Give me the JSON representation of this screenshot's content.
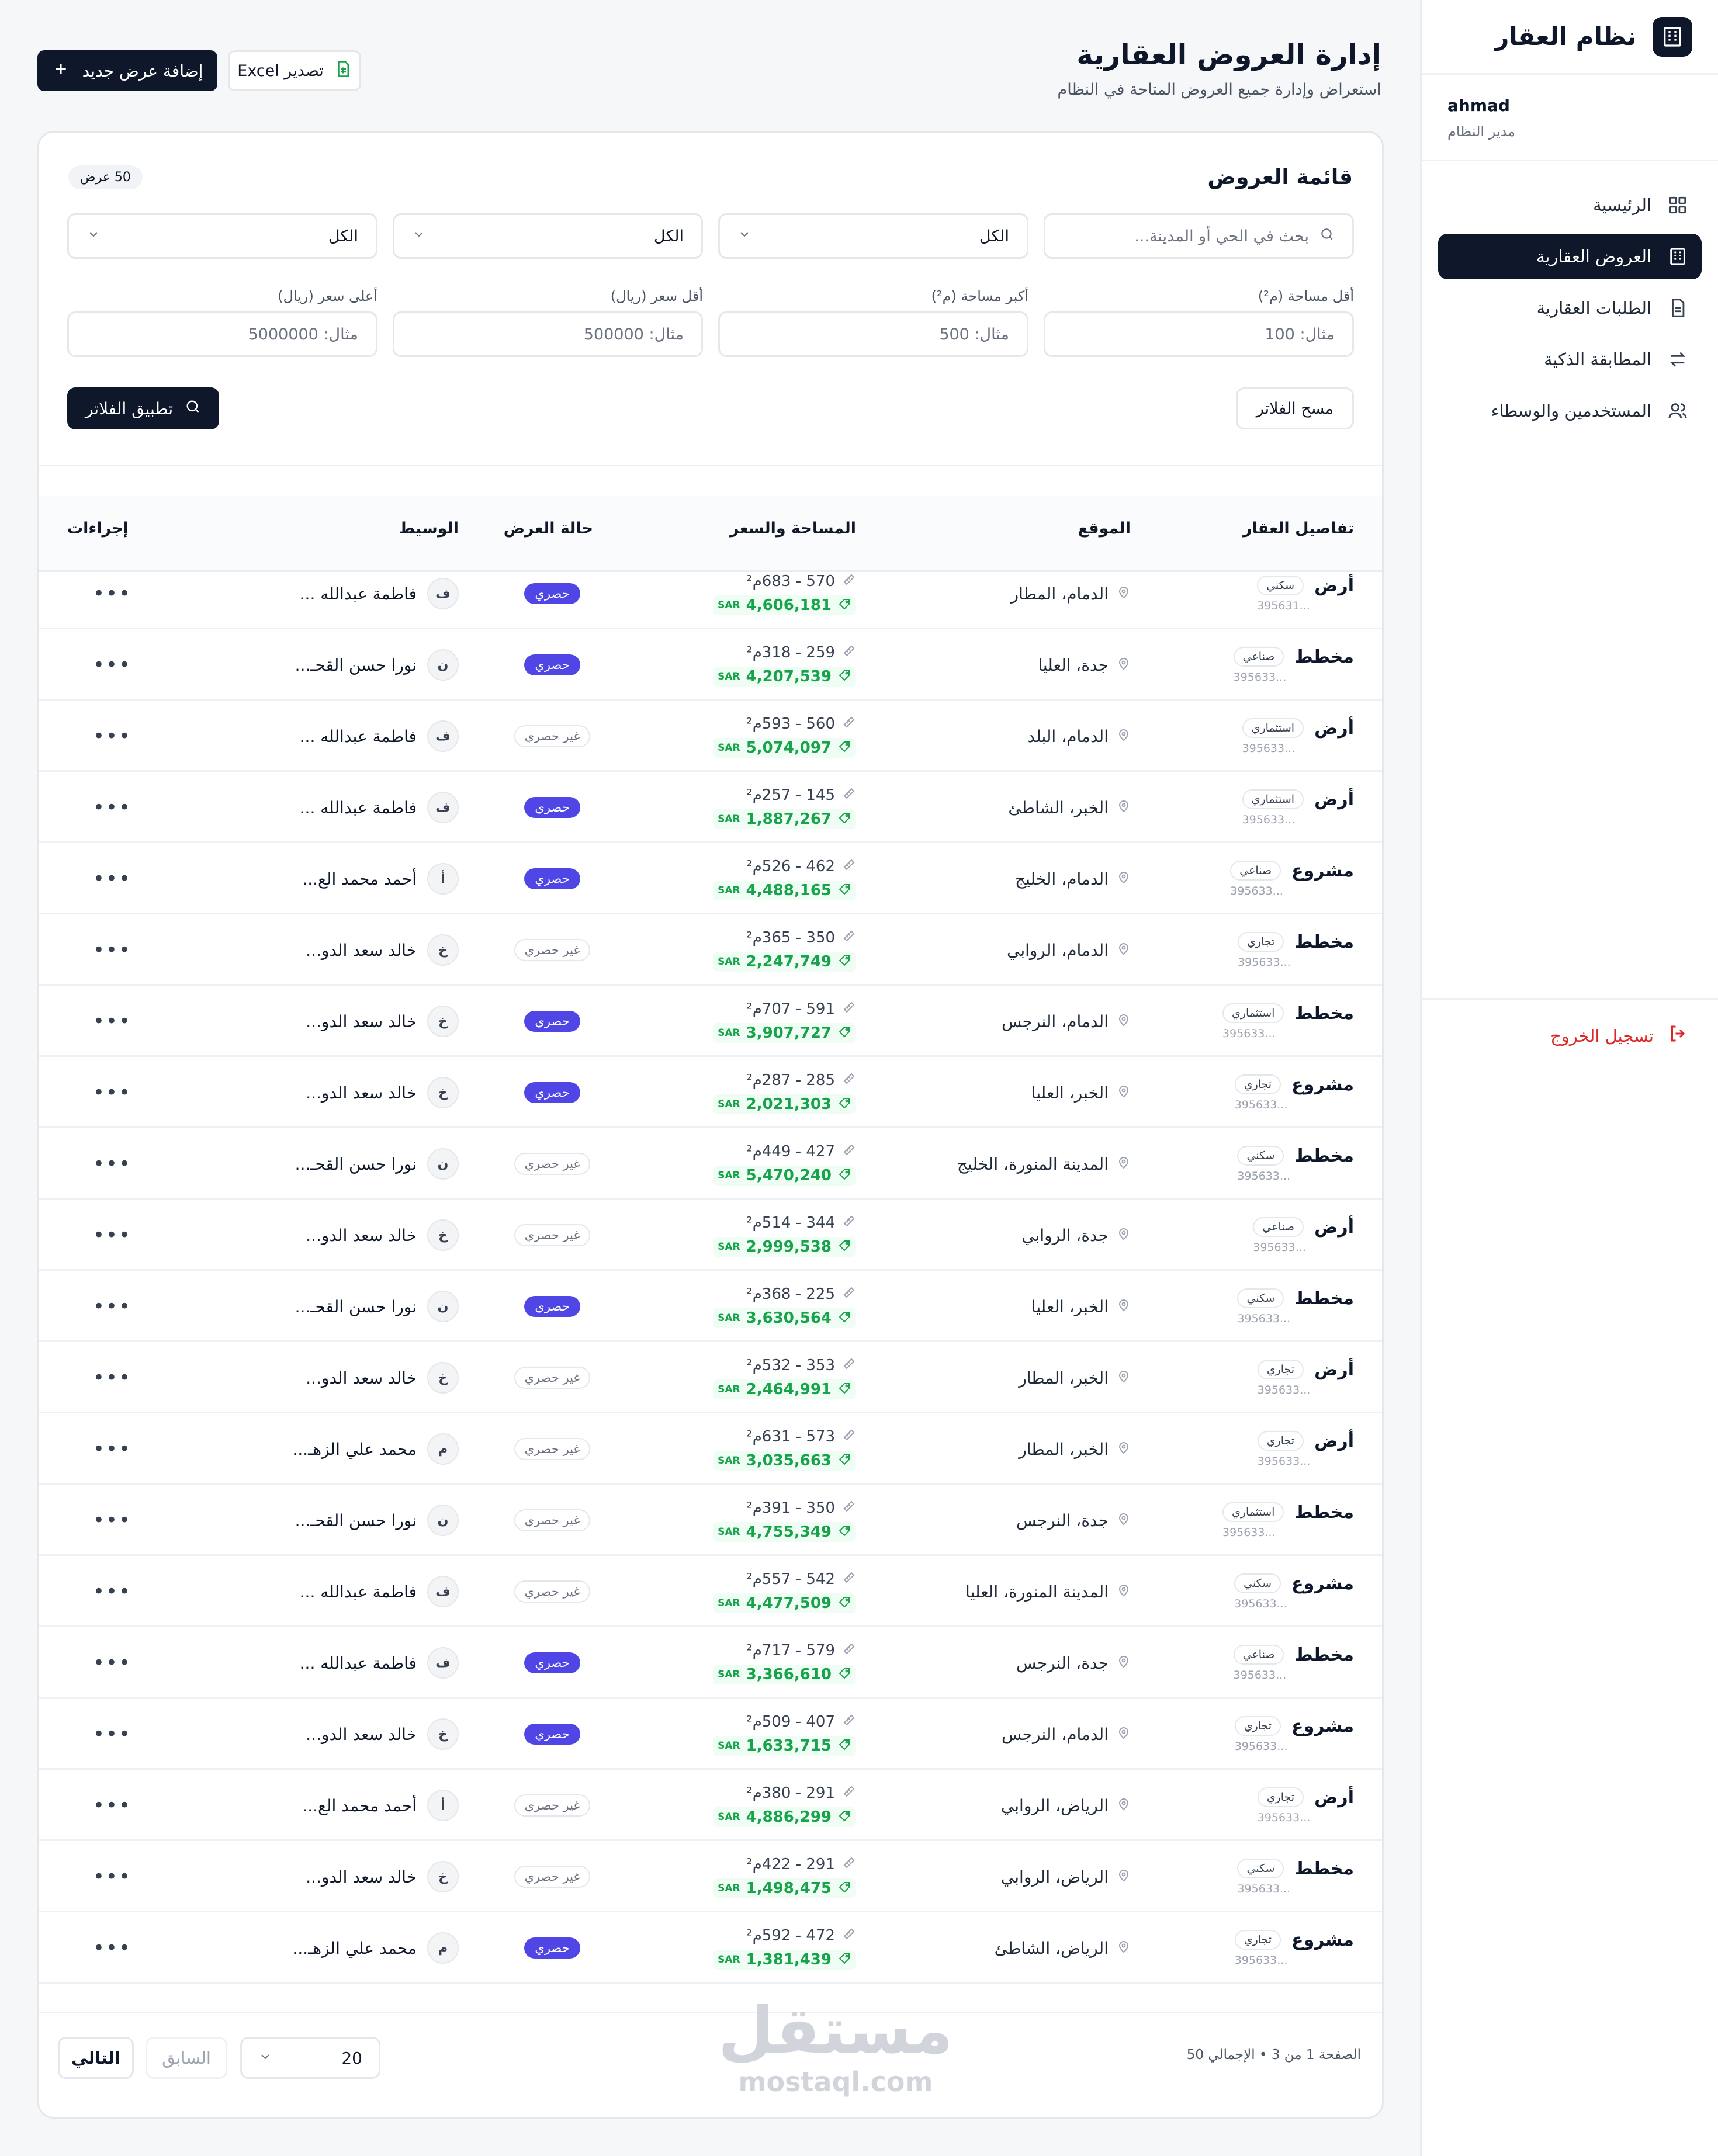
{
  "brand": {
    "title": "نظام العقار"
  },
  "user": {
    "name": "ahmad",
    "role": "مدير النظام"
  },
  "nav": [
    {
      "label": "الرئيسية",
      "icon": "grid-icon",
      "active": false
    },
    {
      "label": "العروض العقارية",
      "icon": "building-icon",
      "active": true
    },
    {
      "label": "الطلبات العقارية",
      "icon": "document-icon",
      "active": false
    },
    {
      "label": "المطابقة الذكية",
      "icon": "swap-arrows-icon",
      "active": false
    },
    {
      "label": "المستخدمين والوسطاء",
      "icon": "users-icon",
      "active": false
    }
  ],
  "logout_label": "تسجيل الخروج",
  "header": {
    "title": "إدارة العروض العقارية",
    "subtitle": "استعراض وإدارة جميع العروض المتاحة في النظام",
    "add_label": "إضافة عرض جديد",
    "export_label": "تصدير Excel"
  },
  "list": {
    "title": "قائمة العروض",
    "count": "50 عرض"
  },
  "filters": {
    "search_placeholder": "بحث في الحي أو المدينة...",
    "select1": "الكل",
    "select2": "الكل",
    "select3": "الكل",
    "min_area_label": "أقل مساحة (م²)",
    "min_area_placeholder": "مثال: 100",
    "max_area_label": "أكبر مساحة (م²)",
    "max_area_placeholder": "مثال: 500",
    "min_price_label": "أقل سعر (ريال)",
    "min_price_placeholder": "مثال: 500000",
    "max_price_label": "أعلى سعر (ريال)",
    "max_price_placeholder": "مثال: 5000000",
    "clear_label": "مسح الفلاتر",
    "apply_label": "تطبيق الفلاتر"
  },
  "columns": {
    "details": "تفاصيل العقار",
    "location": "الموقع",
    "area_price": "المساحة والسعر",
    "status": "حالة العرض",
    "broker": "الوسيط",
    "actions": "إجراءات"
  },
  "currency": "SAR",
  "rows": [
    {
      "type": "أرض",
      "tag": "سكني",
      "id": "395631...",
      "location": "الدمام، المطار",
      "area": "570 - 683م²",
      "price": "4,606,181",
      "status": "حصري",
      "exclusive": true,
      "initial": "ف",
      "broker": "فاطمة عبدالله ..."
    },
    {
      "type": "مخطط",
      "tag": "صناعي",
      "id": "395633...",
      "location": "جدة، العليا",
      "area": "259 - 318م²",
      "price": "4,207,539",
      "status": "حصري",
      "exclusive": true,
      "initial": "ن",
      "broker": "نورا حسن القحـ..."
    },
    {
      "type": "أرض",
      "tag": "استثماري",
      "id": "395633...",
      "location": "الدمام، البلد",
      "area": "560 - 593م²",
      "price": "5,074,097",
      "status": "غير حصري",
      "exclusive": false,
      "initial": "ف",
      "broker": "فاطمة عبدالله ..."
    },
    {
      "type": "أرض",
      "tag": "استثماري",
      "id": "395633...",
      "location": "الخبر، الشاطئ",
      "area": "145 - 257م²",
      "price": "1,887,267",
      "status": "حصري",
      "exclusive": true,
      "initial": "ف",
      "broker": "فاطمة عبدالله ..."
    },
    {
      "type": "مشروع",
      "tag": "صناعي",
      "id": "395633...",
      "location": "الدمام، الخليج",
      "area": "462 - 526م²",
      "price": "4,488,165",
      "status": "حصري",
      "exclusive": true,
      "initial": "أ",
      "broker": "أحمد محمد الع..."
    },
    {
      "type": "مخطط",
      "tag": "تجاري",
      "id": "395633...",
      "location": "الدمام، الروابي",
      "area": "350 - 365م²",
      "price": "2,247,749",
      "status": "غير حصري",
      "exclusive": false,
      "initial": "خ",
      "broker": "خالد سعد الدو..."
    },
    {
      "type": "مخطط",
      "tag": "استثماري",
      "id": "395633...",
      "location": "الدمام، النرجس",
      "area": "591 - 707م²",
      "price": "3,907,727",
      "status": "حصري",
      "exclusive": true,
      "initial": "خ",
      "broker": "خالد سعد الدو..."
    },
    {
      "type": "مشروع",
      "tag": "تجاري",
      "id": "395633...",
      "location": "الخبر، العليا",
      "area": "285 - 287م²",
      "price": "2,021,303",
      "status": "حصري",
      "exclusive": true,
      "initial": "خ",
      "broker": "خالد سعد الدو..."
    },
    {
      "type": "مخطط",
      "tag": "سكني",
      "id": "395633...",
      "location": "المدينة المنورة، الخليج",
      "area": "427 - 449م²",
      "price": "5,470,240",
      "status": "غير حصري",
      "exclusive": false,
      "initial": "ن",
      "broker": "نورا حسن القحـ..."
    },
    {
      "type": "أرض",
      "tag": "صناعي",
      "id": "395633...",
      "location": "جدة، الروابي",
      "area": "344 - 514م²",
      "price": "2,999,538",
      "status": "غير حصري",
      "exclusive": false,
      "initial": "خ",
      "broker": "خالد سعد الدو..."
    },
    {
      "type": "مخطط",
      "tag": "سكني",
      "id": "395633...",
      "location": "الخبر، العليا",
      "area": "225 - 368م²",
      "price": "3,630,564",
      "status": "حصري",
      "exclusive": true,
      "initial": "ن",
      "broker": "نورا حسن القحـ..."
    },
    {
      "type": "أرض",
      "tag": "تجاري",
      "id": "395633...",
      "location": "الخبر، المطار",
      "area": "353 - 532م²",
      "price": "2,464,991",
      "status": "غير حصري",
      "exclusive": false,
      "initial": "خ",
      "broker": "خالد سعد الدو..."
    },
    {
      "type": "أرض",
      "tag": "تجاري",
      "id": "395633...",
      "location": "الخبر، المطار",
      "area": "573 - 631م²",
      "price": "3,035,663",
      "status": "غير حصري",
      "exclusive": false,
      "initial": "م",
      "broker": "محمد علي الزهـ..."
    },
    {
      "type": "مخطط",
      "tag": "استثماري",
      "id": "395633...",
      "location": "جدة، النرجس",
      "area": "350 - 391م²",
      "price": "4,755,349",
      "status": "غير حصري",
      "exclusive": false,
      "initial": "ن",
      "broker": "نورا حسن القحـ..."
    },
    {
      "type": "مشروع",
      "tag": "سكني",
      "id": "395633...",
      "location": "المدينة المنورة، العليا",
      "area": "542 - 557م²",
      "price": "4,477,509",
      "status": "غير حصري",
      "exclusive": false,
      "initial": "ف",
      "broker": "فاطمة عبدالله ..."
    },
    {
      "type": "مخطط",
      "tag": "صناعي",
      "id": "395633...",
      "location": "جدة، النرجس",
      "area": "579 - 717م²",
      "price": "3,366,610",
      "status": "حصري",
      "exclusive": true,
      "initial": "ف",
      "broker": "فاطمة عبدالله ..."
    },
    {
      "type": "مشروع",
      "tag": "تجاري",
      "id": "395633...",
      "location": "الدمام، النرجس",
      "area": "407 - 509م²",
      "price": "1,633,715",
      "status": "حصري",
      "exclusive": true,
      "initial": "خ",
      "broker": "خالد سعد الدو..."
    },
    {
      "type": "أرض",
      "tag": "تجاري",
      "id": "395633...",
      "location": "الرياض، الروابي",
      "area": "291 - 380م²",
      "price": "4,886,299",
      "status": "غير حصري",
      "exclusive": false,
      "initial": "أ",
      "broker": "أحمد محمد الع..."
    },
    {
      "type": "مخطط",
      "tag": "سكني",
      "id": "395633...",
      "location": "الرياض، الروابي",
      "area": "291 - 422م²",
      "price": "1,498,475",
      "status": "غير حصري",
      "exclusive": false,
      "initial": "خ",
      "broker": "خالد سعد الدو..."
    },
    {
      "type": "مشروع",
      "tag": "تجاري",
      "id": "395633...",
      "location": "الرياض، الشاطئ",
      "area": "472 - 592م²",
      "price": "1,381,439",
      "status": "حصري",
      "exclusive": true,
      "initial": "م",
      "broker": "محمد علي الزهـ..."
    }
  ],
  "pagination": {
    "info": "الصفحة 1 من 3 • الإجمالي 50",
    "page_size": "20",
    "prev_label": "السابق",
    "next_label": "التالي"
  },
  "watermark": {
    "arabic": "مستقل",
    "latin": "mostaql.com"
  }
}
